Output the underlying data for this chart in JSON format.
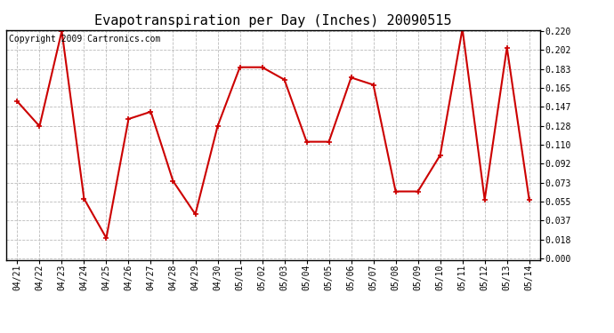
{
  "title": "Evapotranspiration per Day (Inches) 20090515",
  "copyright": "Copyright 2009 Cartronics.com",
  "x_labels": [
    "04/21",
    "04/22",
    "04/23",
    "04/24",
    "04/25",
    "04/26",
    "04/27",
    "04/28",
    "04/29",
    "04/30",
    "05/01",
    "05/02",
    "05/03",
    "05/04",
    "05/05",
    "05/06",
    "05/07",
    "05/08",
    "05/09",
    "05/10",
    "05/11",
    "05/12",
    "05/13",
    "05/14"
  ],
  "y_values": [
    0.152,
    0.128,
    0.22,
    0.058,
    0.02,
    0.135,
    0.142,
    0.075,
    0.043,
    0.128,
    0.185,
    0.185,
    0.173,
    0.113,
    0.113,
    0.175,
    0.168,
    0.065,
    0.065,
    0.1,
    0.222,
    0.057,
    0.204,
    0.057
  ],
  "y_ticks": [
    0.0,
    0.018,
    0.037,
    0.055,
    0.073,
    0.092,
    0.11,
    0.128,
    0.147,
    0.165,
    0.183,
    0.202,
    0.22
  ],
  "line_color": "#cc0000",
  "marker": "+",
  "marker_size": 5,
  "marker_linewidth": 1.2,
  "line_width": 1.5,
  "bg_color": "#ffffff",
  "plot_bg_color": "#ffffff",
  "grid_color": "#bbbbbb",
  "grid_linewidth": 0.6,
  "title_fontsize": 11,
  "tick_fontsize": 7,
  "copyright_fontsize": 7,
  "ylim_min": 0.0,
  "ylim_max": 0.22
}
